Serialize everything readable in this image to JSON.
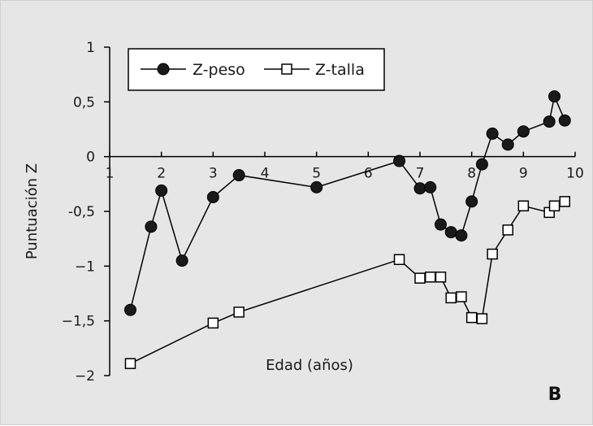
{
  "chart_data": {
    "type": "line",
    "title": "",
    "xlabel": "Edad (años)",
    "ylabel": "Puntuación Z",
    "xlim": [
      1,
      10
    ],
    "ylim": [
      -2,
      1
    ],
    "x_ticks": [
      "1",
      "2",
      "3",
      "4",
      "5",
      "6",
      "7",
      "8",
      "9",
      "10"
    ],
    "y_ticks": [
      {
        "value": 1,
        "label": "1"
      },
      {
        "value": 0.5,
        "label": "0,5"
      },
      {
        "value": 0,
        "label": "0"
      },
      {
        "value": -0.5,
        "label": "-0,5"
      },
      {
        "value": -1,
        "label": "−1"
      },
      {
        "value": -1.5,
        "label": "−1,5"
      },
      {
        "value": -2,
        "label": "−2"
      }
    ],
    "legend_position": "top-left",
    "grid": false,
    "panel_label": "B",
    "series": [
      {
        "name": "Z-peso",
        "marker": "filled-circle",
        "x": [
          1.4,
          1.8,
          2.0,
          2.4,
          3.0,
          3.5,
          5.0,
          6.6,
          7.0,
          7.2,
          7.4,
          7.6,
          7.8,
          8.0,
          8.2,
          8.4,
          8.7,
          9.0,
          9.5,
          9.6,
          9.8
        ],
        "y": [
          -1.4,
          -0.64,
          -0.31,
          -0.95,
          -0.37,
          -0.17,
          -0.28,
          -0.04,
          -0.29,
          -0.28,
          -0.62,
          -0.69,
          -0.72,
          -0.41,
          -0.07,
          0.21,
          0.11,
          0.23,
          0.32,
          0.55,
          0.33
        ]
      },
      {
        "name": "Z-talla",
        "marker": "open-square",
        "x": [
          1.4,
          3.0,
          3.5,
          6.6,
          7.0,
          7.2,
          7.4,
          7.6,
          7.8,
          8.0,
          8.2,
          8.4,
          8.7,
          9.0,
          9.5,
          9.6,
          9.8
        ],
        "y": [
          -1.89,
          -1.52,
          -1.42,
          -0.94,
          -1.11,
          -1.1,
          -1.1,
          -1.29,
          -1.28,
          -1.47,
          -1.48,
          -0.89,
          -0.67,
          -0.45,
          -0.51,
          -0.45,
          -0.41
        ]
      }
    ]
  }
}
